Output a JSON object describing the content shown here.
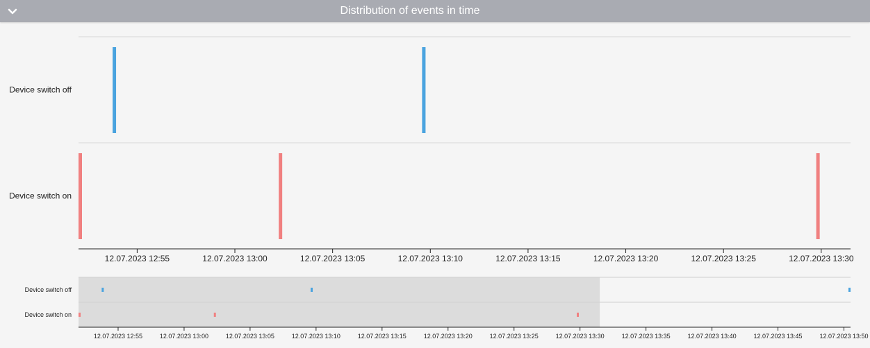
{
  "header": {
    "title": "Distribution of events in time",
    "toggle_icon": "chevron-down-icon"
  },
  "chart_data": {
    "type": "timeline",
    "title": "Distribution of events in time",
    "series": [
      {
        "name": "Device switch off",
        "color": "#4aa3df",
        "events": [
          "12:53:50",
          "13:09:40",
          "13:50:30"
        ]
      },
      {
        "name": "Device switch on",
        "color": "#f08080",
        "events": [
          "12:52:00",
          "13:02:20",
          "13:29:50"
        ]
      }
    ],
    "main_view": {
      "range": [
        "12:52:00",
        "13:31:30"
      ],
      "ticks": [
        "12.07.2023 12:55",
        "12.07.2023 13:00",
        "12.07.2023 13:05",
        "12.07.2023 13:10",
        "12.07.2023 13:15",
        "12.07.2023 13:20",
        "12.07.2023 13:25",
        "12.07.2023 13:30"
      ],
      "tick_times": [
        "12:55",
        "13:00",
        "13:05",
        "13:10",
        "13:15",
        "13:20",
        "13:25",
        "13:30"
      ]
    },
    "overview": {
      "range": [
        "12:52:00",
        "13:50:30"
      ],
      "selection": [
        "12:52:00",
        "13:31:30"
      ],
      "ticks": [
        "12.07.2023 12:55",
        "12.07.2023 13:00",
        "12.07.2023 13:05",
        "12.07.2023 13:10",
        "12.07.2023 13:15",
        "12.07.2023 13:20",
        "12.07.2023 13:25",
        "12.07.2023 13:30",
        "12.07.2023 13:35",
        "12.07.2023 13:40",
        "12.07.2023 13:45",
        "12.07.2023 13:50"
      ],
      "tick_times": [
        "12:55",
        "13:00",
        "13:05",
        "13:10",
        "13:15",
        "13:20",
        "13:25",
        "13:30",
        "13:35",
        "13:40",
        "13:45",
        "13:50"
      ]
    }
  }
}
